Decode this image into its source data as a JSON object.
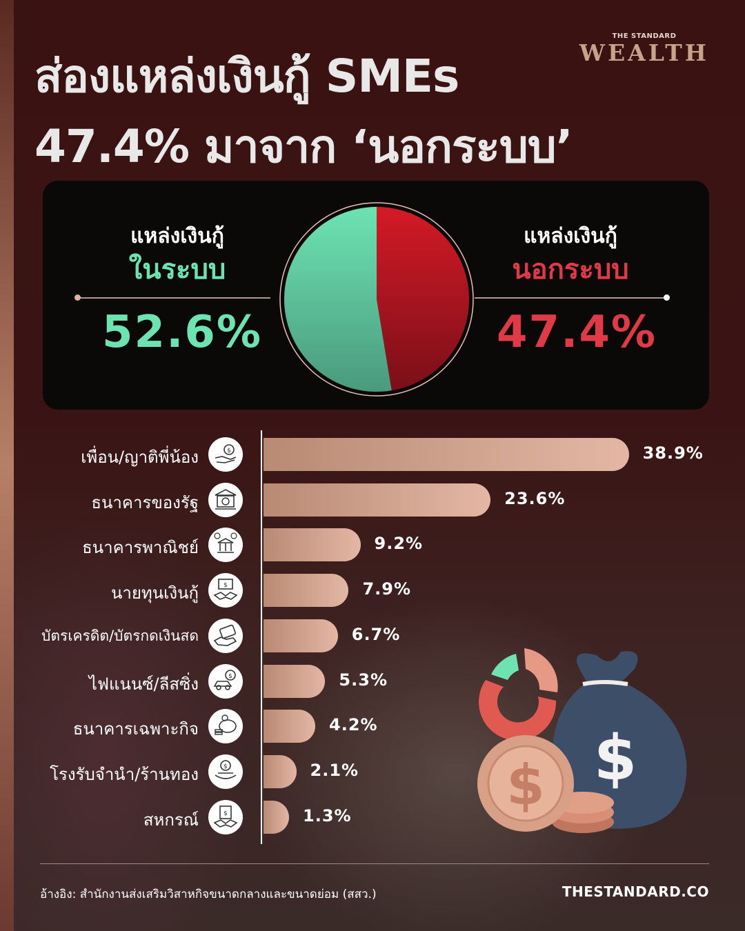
{
  "header": {
    "title_line1": "ส่องแหล่งเงินกู้ SMEs",
    "title_line2": "47.4% มาจาก ‘นอกระบบ’",
    "brand_small": "THE STANDARD",
    "brand_big": "WEALTH"
  },
  "panel": {
    "left_label": "แหล่งเงินกู้",
    "left_sub": "ในระบบ",
    "left_value": "52.6%",
    "right_label": "แหล่งเงินกู้",
    "right_sub": "นอกระบบ",
    "right_value": "47.4%"
  },
  "colors": {
    "formal": "#6de3b2",
    "informal": "#e03a46",
    "bar": "#e3b7a4",
    "background": "#3a1414"
  },
  "chart_data": [
    {
      "type": "pie",
      "categories": [
        "แหล่งเงินกู้ในระบบ",
        "แหล่งเงินกู้นอกระบบ"
      ],
      "values": [
        52.6,
        47.4
      ],
      "unit": "%"
    },
    {
      "type": "bar",
      "orientation": "horizontal",
      "categories": [
        "เพื่อน/ญาติพี่น้อง",
        "ธนาคารของรัฐ",
        "ธนาคารพาณิชย์",
        "นายทุนเงินกู้",
        "บัตรเครดิต/บัตรกดเงินสด",
        "ไฟแนนซ์/ลีสซิ่ง",
        "ธนาคารเฉพาะกิจ",
        "โรงรับจำนำ/ร้านทอง",
        "สหกรณ์"
      ],
      "values": [
        38.9,
        23.6,
        9.2,
        7.9,
        6.7,
        5.3,
        4.2,
        2.1,
        1.3
      ],
      "value_labels": [
        "38.9%",
        "23.6%",
        "9.2%",
        "7.9%",
        "6.7%",
        "5.3%",
        "4.2%",
        "2.1%",
        "1.3%"
      ],
      "icons": [
        "hand-money-icon",
        "bank-building-icon",
        "commercial-bank-icon",
        "handshake-money-icon",
        "credit-card-icon",
        "car-loan-icon",
        "piggy-bank-icon",
        "pawn-shop-icon",
        "cooperative-icon"
      ],
      "xlim": [
        0,
        40
      ],
      "grid": false
    }
  ],
  "footer": {
    "source": "อ้างอิง: สำนักงานส่งเสริมวิสาหกิจขนาดกลางและขนาดย่อม (สสว.)",
    "site": "THESTANDARD.CO"
  }
}
